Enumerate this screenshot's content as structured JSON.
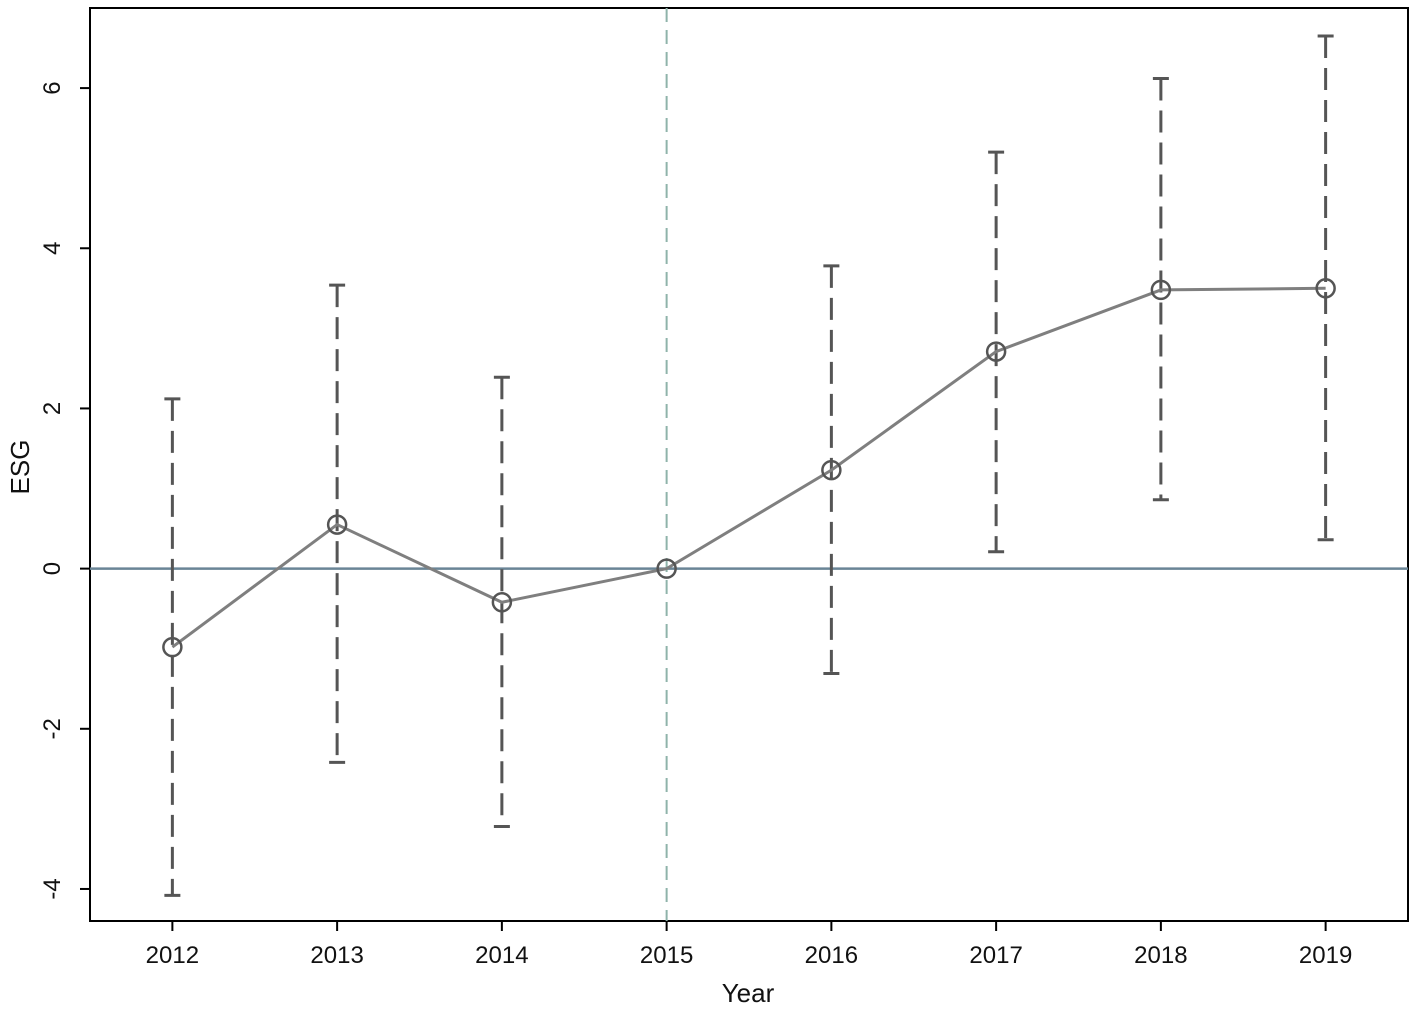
{
  "chart_data": {
    "type": "line",
    "title": "",
    "xlabel": "Year",
    "ylabel": "ESG",
    "x": [
      2012,
      2013,
      2014,
      2015,
      2016,
      2017,
      2018,
      2019
    ],
    "x_tick_labels": [
      "2012",
      "2013",
      "2014",
      "2015",
      "2016",
      "2017",
      "2018",
      "2019"
    ],
    "xlim": [
      2011.5,
      2019.5
    ],
    "ylim": [
      -4.4,
      7.0
    ],
    "y_ticks": [
      -4,
      -2,
      0,
      2,
      4,
      6
    ],
    "y_tick_labels": [
      "-4",
      "-2",
      "0",
      "2",
      "4",
      "6"
    ],
    "series": [
      {
        "type": "line-with-error-bars",
        "values": [
          -0.98,
          0.55,
          -0.42,
          0.0,
          1.23,
          2.71,
          3.48,
          3.5
        ],
        "ci_lower": [
          -4.08,
          -2.42,
          -3.22,
          0.0,
          -1.31,
          0.21,
          0.86,
          0.36
        ],
        "ci_upper": [
          2.12,
          3.54,
          2.39,
          0.0,
          3.78,
          5.2,
          6.12,
          6.65
        ]
      }
    ],
    "reference_lines": [
      {
        "orientation": "horizontal",
        "value": 0,
        "style": "solid"
      },
      {
        "orientation": "vertical",
        "value": 2015,
        "style": "dashed"
      }
    ],
    "grid": false,
    "legend": "none",
    "colors": {
      "line": "#7f7f7f",
      "marker": "#555555",
      "error_bar": "#555555",
      "zero_line": "#6a8596",
      "vline": "#8fb3aa",
      "axis": "#000000"
    }
  }
}
